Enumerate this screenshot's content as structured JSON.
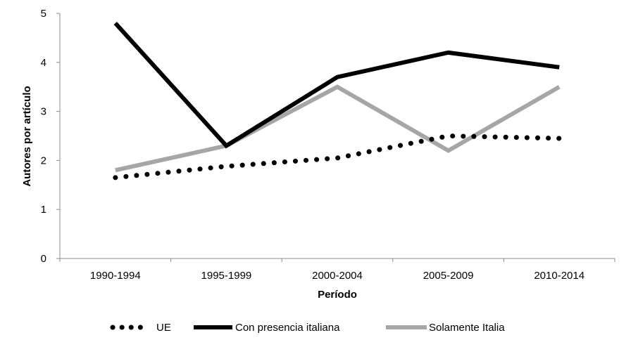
{
  "chart_data": {
    "type": "line",
    "title": "",
    "xlabel": "Período",
    "ylabel": "Autores por artículo",
    "categories": [
      "1990-1994",
      "1995-1999",
      "2000-2004",
      "2005-2009",
      "2010-2014"
    ],
    "ylim": [
      0,
      5
    ],
    "yticks": [
      "0",
      "1",
      "2",
      "3",
      "4",
      "5"
    ],
    "grid": false,
    "legend_position": "bottom",
    "series": [
      {
        "name": "UE",
        "values": [
          1.65,
          1.88,
          2.05,
          2.5,
          2.45
        ],
        "color": "#000000",
        "style": "dotted"
      },
      {
        "name": "Con presencia italiana",
        "values": [
          4.8,
          2.3,
          3.7,
          4.2,
          3.9
        ],
        "color": "#000000",
        "style": "solid"
      },
      {
        "name": "Solamente Italia",
        "values": [
          1.8,
          2.3,
          3.5,
          2.2,
          3.5
        ],
        "color": "#a6a6a6",
        "style": "solid"
      }
    ]
  }
}
